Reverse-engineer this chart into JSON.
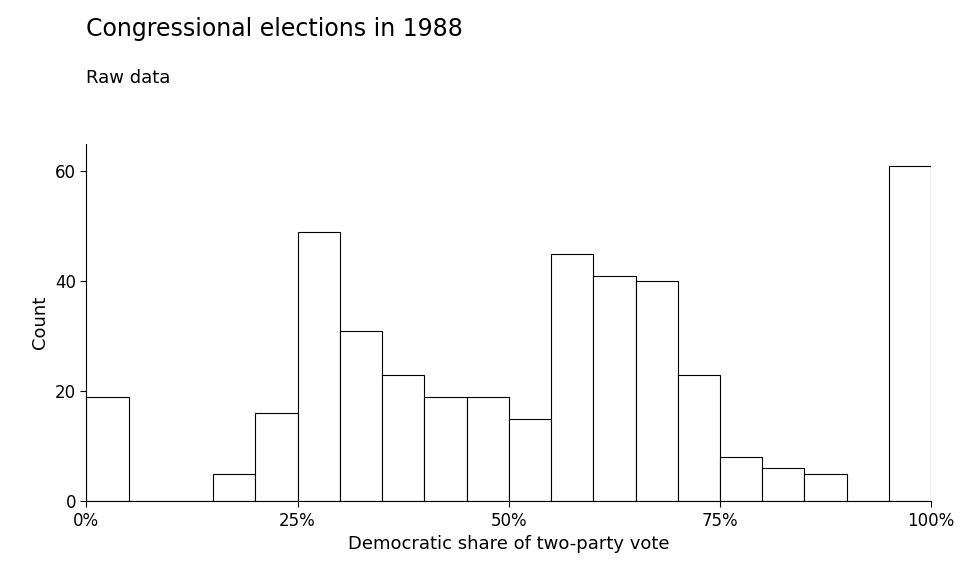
{
  "title": "Congressional elections in 1988",
  "subtitle": "Raw data",
  "xlabel": "Democratic share of two-party vote",
  "ylabel": "Count",
  "bin_edges": [
    0,
    5,
    10,
    15,
    20,
    25,
    30,
    35,
    40,
    45,
    50,
    55,
    60,
    65,
    70,
    75,
    80,
    85,
    90,
    95,
    100
  ],
  "counts": [
    19,
    0,
    0,
    5,
    16,
    49,
    31,
    23,
    19,
    19,
    15,
    45,
    41,
    40,
    23,
    8,
    6,
    5,
    0,
    61
  ],
  "xlim": [
    0,
    100
  ],
  "ylim": [
    0,
    65
  ],
  "yticks": [
    0,
    20,
    40,
    60
  ],
  "xtick_positions": [
    0,
    25,
    50,
    75,
    100
  ],
  "xtick_labels": [
    "0%",
    "25%",
    "50%",
    "75%",
    "100%"
  ],
  "bar_color": "white",
  "bar_edgecolor": "black",
  "background_color": "white",
  "title_fontsize": 17,
  "subtitle_fontsize": 13,
  "label_fontsize": 13,
  "tick_fontsize": 12
}
